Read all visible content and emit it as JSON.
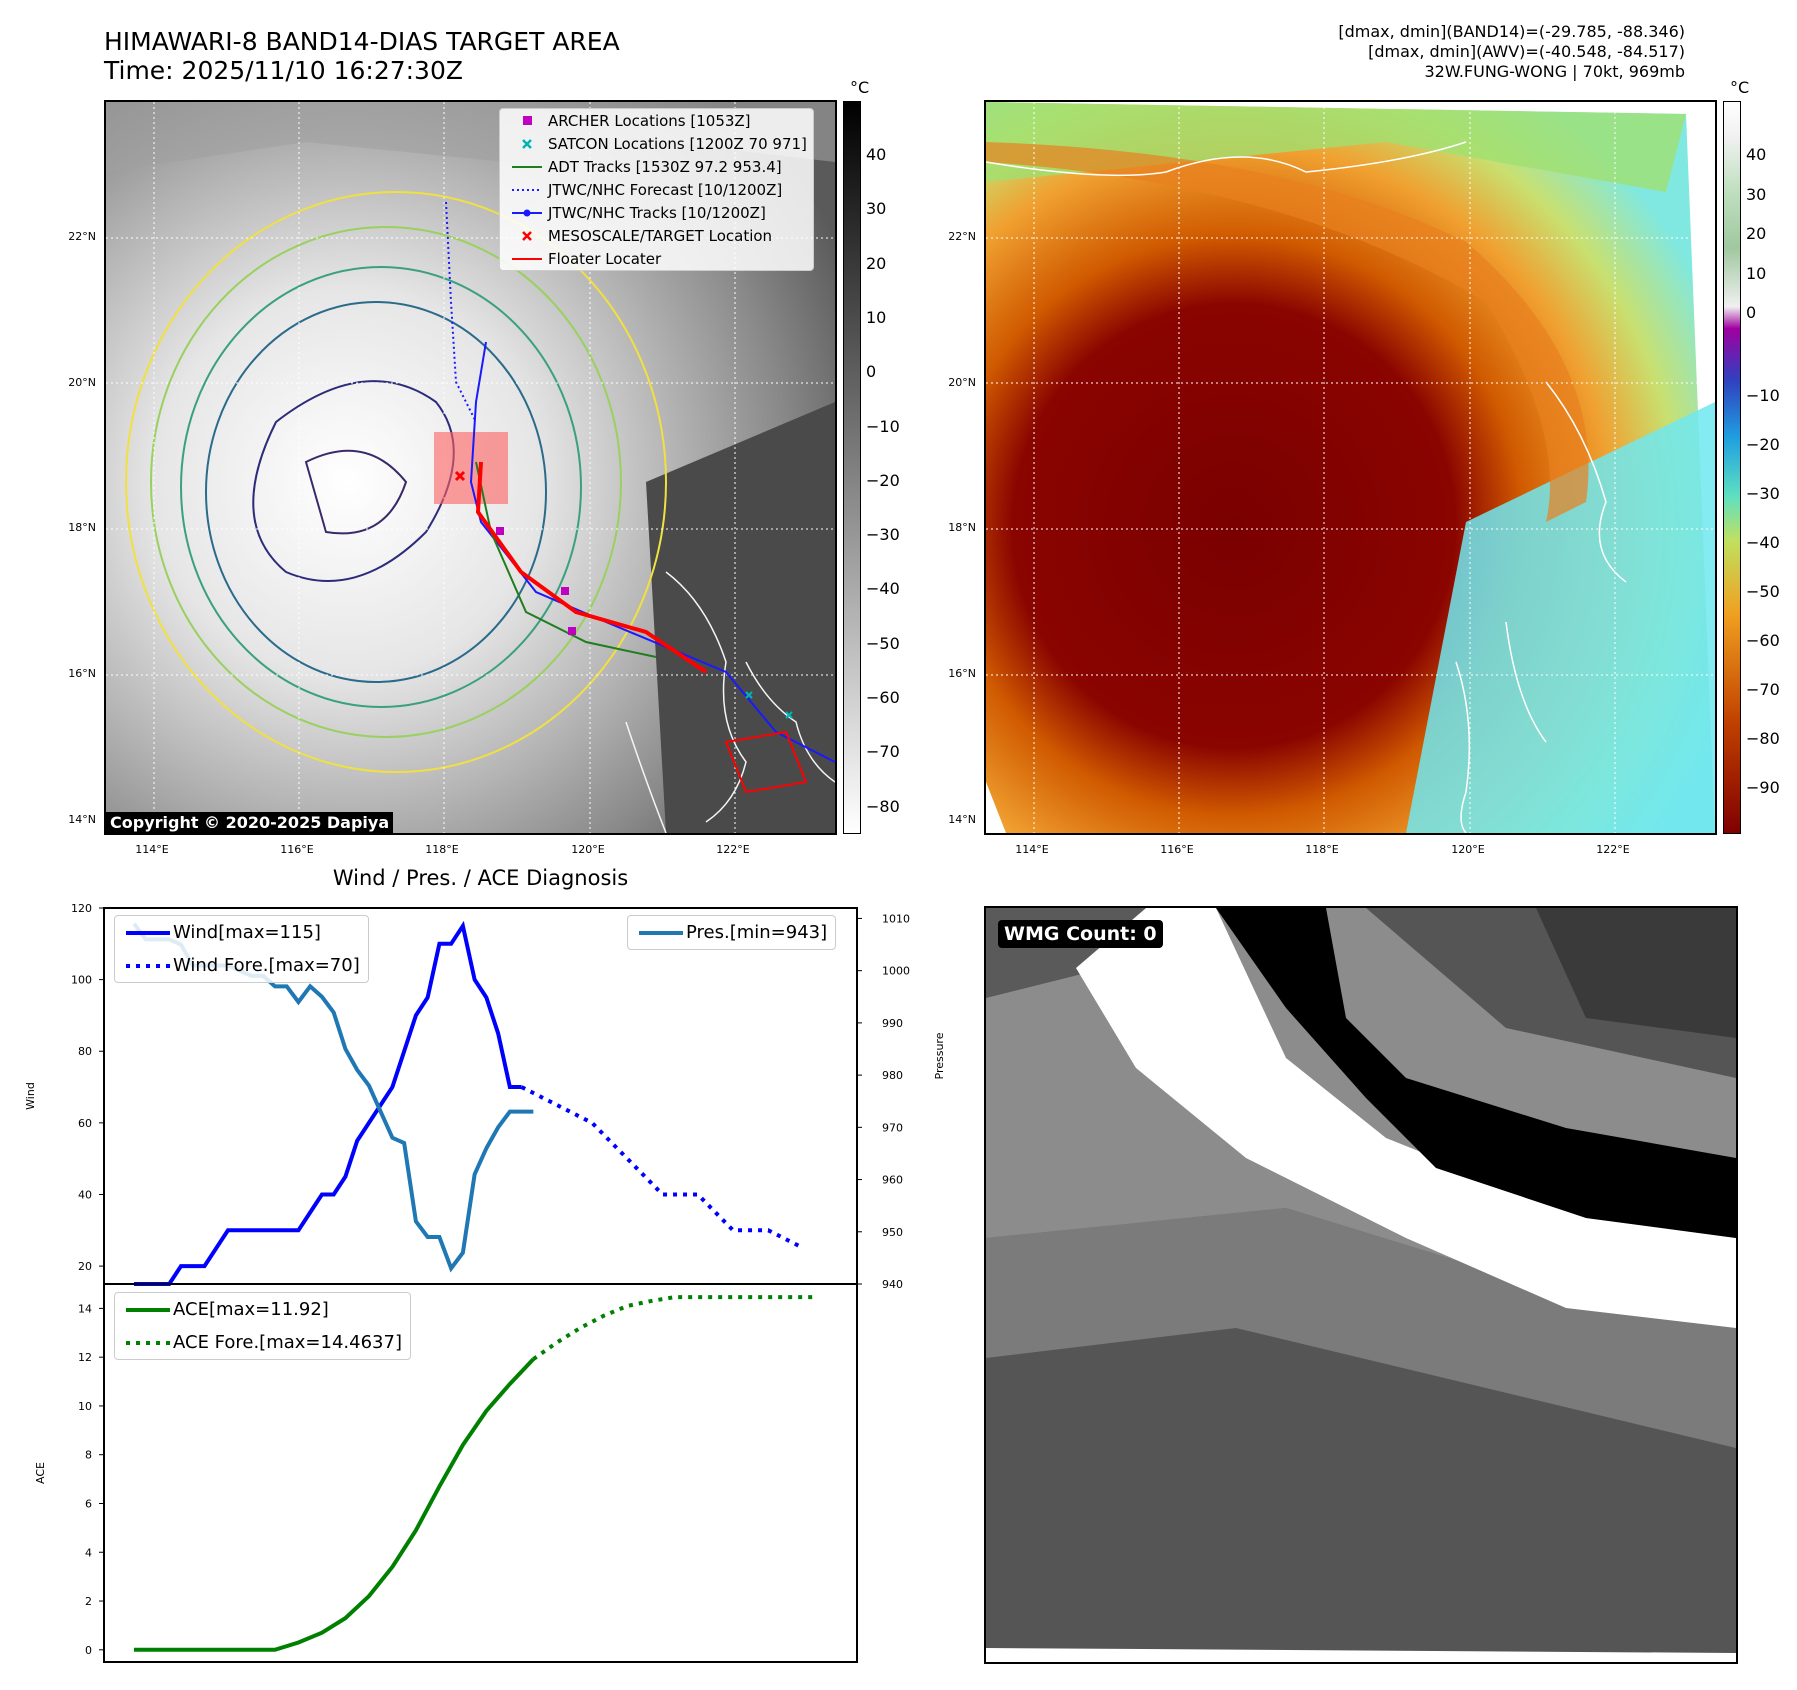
{
  "header": {
    "title_line1": "HIMAWARI-8 BAND14-DIAS TARGET AREA",
    "title_line2": "Time: 2025/11/10 16:27:30Z",
    "info_line1": "[dmax, dmin](BAND14)=(-29.785, -88.346)",
    "info_line2": "[dmax, dmin](AWV)=(-40.548, -84.517)",
    "info_line3": "32W.FUNG-WONG | 70kt, 969mb"
  },
  "map": {
    "lat_labels": [
      "22°N",
      "20°N",
      "18°N",
      "16°N",
      "14°N"
    ],
    "lon_labels": [
      "114°E",
      "116°E",
      "118°E",
      "120°E",
      "122°E"
    ],
    "copyright": "Copyright © 2020-2025 Dapiya",
    "legend": [
      {
        "label": "ARCHER Locations [1053Z]",
        "color": "#c000c0",
        "marker": "square"
      },
      {
        "label": "SATCON Locations [1200Z 70 971]",
        "color": "#00b5b5",
        "marker": "x"
      },
      {
        "label": "ADT Tracks [1530Z 97.2 953.4]",
        "color": "#1e7d1e",
        "marker": "line"
      },
      {
        "label": "JTWC/NHC Forecast [10/1200Z]",
        "color": "#1a1aff",
        "marker": "dotted"
      },
      {
        "label": "JTWC/NHC Tracks [10/1200Z]",
        "color": "#1a1aff",
        "marker": "line-dot"
      },
      {
        "label": "MESOSCALE/TARGET Location",
        "color": "#ff0000",
        "marker": "x"
      },
      {
        "label": "Floater Locater",
        "color": "#ff0000",
        "marker": "line"
      }
    ],
    "colorbar_unit": "°C",
    "colorbar_ticks_left": [
      "40",
      "30",
      "20",
      "10",
      "0",
      "−10",
      "−20",
      "−30",
      "−40",
      "−50",
      "−60",
      "−70",
      "−80"
    ],
    "colorbar_ticks_right": [
      "40",
      "30",
      "20",
      "10",
      "0",
      "−10",
      "−20",
      "−30",
      "−40",
      "−50",
      "−60",
      "−70",
      "−80",
      "−90"
    ]
  },
  "diag_title": "Wind / Pres. / ACE Diagnosis",
  "wmg_label": "WMG Count: 0",
  "chart_data": [
    {
      "type": "line",
      "title": "Wind / Pres. / ACE Diagnosis",
      "ylabel": "Wind",
      "y2label": "Pressure",
      "ylim": [
        15,
        120
      ],
      "y2lim": [
        940,
        1012
      ],
      "yticks": [
        20,
        40,
        60,
        80,
        100,
        120
      ],
      "y2ticks": [
        940,
        950,
        960,
        970,
        980,
        990,
        1000,
        1010
      ],
      "series": [
        {
          "name": "Wind[max=115]",
          "color": "#0000ff",
          "style": "solid",
          "axis": "left",
          "x": [
            0,
            1,
            2,
            3,
            4,
            5,
            6,
            7,
            8,
            9,
            10,
            11,
            12,
            13,
            14,
            15,
            16,
            17,
            18,
            19,
            20,
            21,
            22,
            23,
            24,
            25,
            26,
            27,
            28,
            29,
            30,
            31,
            32,
            33
          ],
          "values": [
            15,
            15,
            15,
            15,
            20,
            20,
            20,
            25,
            30,
            30,
            30,
            30,
            30,
            30,
            30,
            35,
            40,
            40,
            45,
            55,
            60,
            65,
            70,
            80,
            90,
            95,
            110,
            110,
            115,
            100,
            95,
            85,
            70,
            70
          ]
        },
        {
          "name": "Wind Fore.[max=70]",
          "color": "#0000ff",
          "style": "dotted",
          "axis": "left",
          "x": [
            33,
            36,
            39,
            42,
            45,
            48,
            51,
            54,
            57
          ],
          "values": [
            70,
            65,
            60,
            50,
            40,
            40,
            30,
            30,
            25
          ]
        },
        {
          "name": "Pres.[min=943]",
          "color": "#1f77b4",
          "style": "solid",
          "axis": "right",
          "x": [
            0,
            1,
            2,
            3,
            4,
            5,
            6,
            7,
            8,
            9,
            10,
            11,
            12,
            13,
            14,
            15,
            16,
            17,
            18,
            19,
            20,
            21,
            22,
            23,
            24,
            25,
            26,
            27,
            28,
            29,
            30,
            31,
            32,
            33,
            34
          ],
          "values": [
            1009,
            1006,
            1006,
            1006,
            1005,
            1001,
            1001,
            1001,
            1001,
            1000,
            999,
            999,
            997,
            997,
            994,
            997,
            995,
            992,
            985,
            981,
            978,
            973,
            968,
            967,
            952,
            949,
            949,
            943,
            946,
            961,
            966,
            970,
            973,
            973,
            973
          ]
        }
      ]
    },
    {
      "type": "line",
      "ylabel": "ACE",
      "ylim": [
        -0.5,
        15
      ],
      "yticks": [
        0,
        2,
        4,
        6,
        8,
        10,
        12,
        14
      ],
      "series": [
        {
          "name": "ACE[max=11.92]",
          "color": "#008000",
          "style": "solid",
          "x": [
            0,
            2,
            4,
            6,
            8,
            10,
            12,
            14,
            16,
            18,
            20,
            22,
            24,
            26,
            28,
            30,
            32,
            34
          ],
          "values": [
            0,
            0,
            0,
            0,
            0,
            0,
            0,
            0.3,
            0.7,
            1.3,
            2.2,
            3.4,
            4.9,
            6.7,
            8.4,
            9.8,
            10.9,
            11.92
          ]
        },
        {
          "name": "ACE Fore.[max=14.4637]",
          "color": "#008000",
          "style": "dotted",
          "x": [
            34,
            36,
            38,
            40,
            42,
            44,
            46,
            48,
            50,
            52,
            54,
            56,
            58
          ],
          "values": [
            11.92,
            12.6,
            13.2,
            13.7,
            14.1,
            14.3,
            14.46,
            14.46,
            14.46,
            14.46,
            14.46,
            14.46,
            14.46
          ]
        }
      ]
    }
  ]
}
